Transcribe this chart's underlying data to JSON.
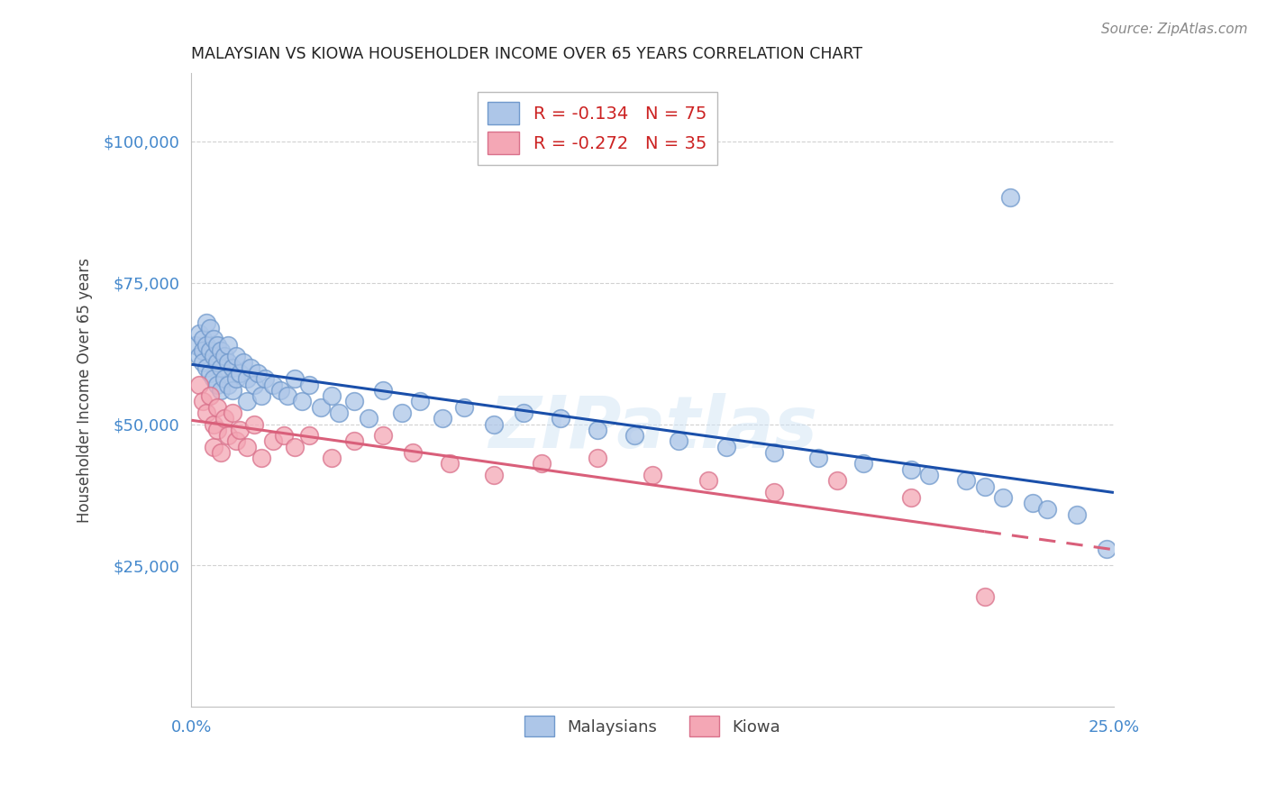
{
  "title": "MALAYSIAN VS KIOWA HOUSEHOLDER INCOME OVER 65 YEARS CORRELATION CHART",
  "source": "Source: ZipAtlas.com",
  "ylabel": "Householder Income Over 65 years",
  "xlim": [
    0.0,
    0.25
  ],
  "ylim": [
    0,
    112000
  ],
  "watermark": "ZIPatlas",
  "legend_r1": "R = -0.134",
  "legend_n1": "N = 75",
  "legend_r2": "R = -0.272",
  "legend_n2": "N = 35",
  "blue_scatter_face": "#adc6e8",
  "blue_scatter_edge": "#7099cc",
  "pink_scatter_face": "#f4a7b5",
  "pink_scatter_edge": "#d9708a",
  "blue_line_color": "#1a4faa",
  "pink_line_color": "#d95f7a",
  "axis_label_color": "#4488cc",
  "grid_color": "#cccccc",
  "title_color": "#222222",
  "source_color": "#888888",
  "malaysian_x": [
    0.001,
    0.002,
    0.002,
    0.003,
    0.003,
    0.003,
    0.004,
    0.004,
    0.004,
    0.005,
    0.005,
    0.005,
    0.006,
    0.006,
    0.006,
    0.007,
    0.007,
    0.007,
    0.008,
    0.008,
    0.008,
    0.009,
    0.009,
    0.01,
    0.01,
    0.01,
    0.011,
    0.011,
    0.012,
    0.012,
    0.013,
    0.014,
    0.015,
    0.015,
    0.016,
    0.017,
    0.018,
    0.019,
    0.02,
    0.022,
    0.024,
    0.026,
    0.028,
    0.03,
    0.032,
    0.035,
    0.038,
    0.04,
    0.044,
    0.048,
    0.052,
    0.057,
    0.062,
    0.068,
    0.074,
    0.082,
    0.09,
    0.1,
    0.11,
    0.12,
    0.132,
    0.145,
    0.158,
    0.17,
    0.182,
    0.195,
    0.2,
    0.21,
    0.215,
    0.22,
    0.222,
    0.228,
    0.232,
    0.24,
    0.248
  ],
  "malaysian_y": [
    64000,
    66000,
    62000,
    65000,
    63000,
    61000,
    68000,
    64000,
    60000,
    67000,
    63000,
    59000,
    65000,
    62000,
    58000,
    64000,
    61000,
    57000,
    63000,
    60000,
    56000,
    62000,
    58000,
    64000,
    61000,
    57000,
    60000,
    56000,
    62000,
    58000,
    59000,
    61000,
    58000,
    54000,
    60000,
    57000,
    59000,
    55000,
    58000,
    57000,
    56000,
    55000,
    58000,
    54000,
    57000,
    53000,
    55000,
    52000,
    54000,
    51000,
    56000,
    52000,
    54000,
    51000,
    53000,
    50000,
    52000,
    51000,
    49000,
    48000,
    47000,
    46000,
    45000,
    44000,
    43000,
    42000,
    41000,
    40000,
    39000,
    37000,
    90000,
    36000,
    35000,
    34000,
    28000
  ],
  "kiowa_x": [
    0.002,
    0.003,
    0.004,
    0.005,
    0.006,
    0.006,
    0.007,
    0.007,
    0.008,
    0.009,
    0.01,
    0.011,
    0.012,
    0.013,
    0.015,
    0.017,
    0.019,
    0.022,
    0.025,
    0.028,
    0.032,
    0.038,
    0.044,
    0.052,
    0.06,
    0.07,
    0.082,
    0.095,
    0.11,
    0.125,
    0.14,
    0.158,
    0.175,
    0.195,
    0.215
  ],
  "kiowa_y": [
    57000,
    54000,
    52000,
    55000,
    50000,
    46000,
    53000,
    49000,
    45000,
    51000,
    48000,
    52000,
    47000,
    49000,
    46000,
    50000,
    44000,
    47000,
    48000,
    46000,
    48000,
    44000,
    47000,
    48000,
    45000,
    43000,
    41000,
    43000,
    44000,
    41000,
    40000,
    38000,
    40000,
    37000,
    19500
  ]
}
